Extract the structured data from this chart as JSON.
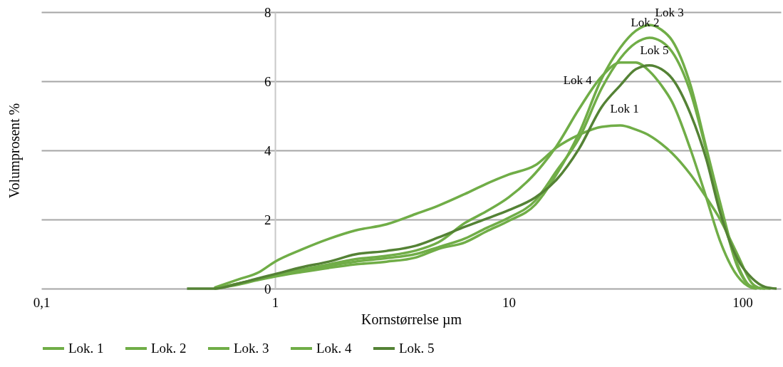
{
  "chart_data": {
    "type": "line",
    "xlabel": "Kornstørrelse µm",
    "ylabel": "Volumprosent %",
    "series": [
      {
        "name": "Lok. 1",
        "color": "#70ad47",
        "x": [
          0.55,
          0.7,
          0.85,
          1,
          1.3,
          1.7,
          2.2,
          3,
          4,
          5,
          6.5,
          8,
          10,
          13,
          16,
          20,
          25,
          30,
          35,
          40,
          45,
          50,
          60,
          70,
          80,
          95,
          110,
          120
        ],
        "values": [
          0.03,
          0.27,
          0.47,
          0.78,
          1.13,
          1.44,
          1.68,
          1.86,
          2.16,
          2.4,
          2.74,
          3.03,
          3.3,
          3.57,
          4.08,
          4.45,
          4.68,
          4.72,
          4.6,
          4.43,
          4.19,
          3.92,
          3.3,
          2.64,
          2.02,
          1.0,
          0.15,
          0
        ]
      },
      {
        "name": "Lok. 2",
        "color": "#70ad47",
        "x": [
          0.55,
          0.7,
          0.85,
          1,
          1.3,
          1.7,
          2.2,
          3,
          4,
          5,
          6.5,
          8,
          10,
          13,
          16,
          20,
          25,
          30,
          35,
          40,
          45,
          50,
          60,
          70,
          80,
          95,
          110,
          125
        ],
        "values": [
          0,
          0.15,
          0.28,
          0.38,
          0.52,
          0.66,
          0.78,
          0.88,
          1.0,
          1.2,
          1.45,
          1.75,
          2.05,
          2.55,
          3.4,
          4.35,
          5.8,
          6.66,
          7.11,
          7.26,
          7.15,
          6.85,
          5.67,
          4.0,
          2.45,
          0.65,
          0.05,
          0
        ]
      },
      {
        "name": "Lok. 3",
        "color": "#70ad47",
        "x": [
          0.55,
          0.7,
          0.85,
          1,
          1.3,
          1.7,
          2.2,
          3,
          4,
          5,
          6.5,
          8,
          10,
          13,
          16,
          20,
          25,
          30,
          35,
          40,
          45,
          50,
          60,
          70,
          80,
          95,
          110,
          132
        ],
        "values": [
          0,
          0.12,
          0.25,
          0.35,
          0.48,
          0.6,
          0.7,
          0.78,
          0.9,
          1.15,
          1.34,
          1.65,
          1.96,
          2.43,
          3.3,
          4.5,
          6.08,
          6.97,
          7.46,
          7.63,
          7.49,
          7.18,
          5.88,
          4.08,
          2.52,
          0.72,
          0.05,
          0
        ]
      },
      {
        "name": "Lok. 4",
        "color": "#70ad47",
        "x": [
          0.55,
          0.7,
          0.85,
          1,
          1.3,
          1.7,
          2.2,
          3,
          4,
          5,
          6.5,
          8,
          10,
          13,
          16,
          20,
          25,
          30,
          35,
          40,
          45,
          50,
          60,
          70,
          80,
          95,
          110,
          115
        ],
        "values": [
          0,
          0.15,
          0.28,
          0.4,
          0.55,
          0.7,
          0.85,
          0.95,
          1.1,
          1.34,
          1.9,
          2.23,
          2.64,
          3.34,
          4.12,
          5.2,
          6.14,
          6.54,
          6.54,
          6.29,
          5.88,
          5.4,
          4.02,
          2.64,
          1.4,
          0.37,
          0.02,
          0
        ]
      },
      {
        "name": "Lok. 5",
        "color": "#548235",
        "x": [
          0.42,
          0.55,
          0.7,
          0.85,
          1,
          1.3,
          1.7,
          2.2,
          3,
          4,
          5,
          6.5,
          8,
          10,
          13,
          16,
          20,
          25,
          30,
          35,
          40,
          45,
          50,
          60,
          70,
          80,
          95,
          110,
          125,
          140
        ],
        "values": [
          0,
          0,
          0.15,
          0.3,
          0.42,
          0.62,
          0.78,
          0.99,
          1.09,
          1.24,
          1.48,
          1.79,
          2.02,
          2.27,
          2.64,
          3.15,
          4.05,
          5.26,
          5.88,
          6.35,
          6.46,
          6.35,
          6.08,
          5.05,
          3.75,
          2.23,
          0.87,
          0.3,
          0.05,
          0
        ]
      }
    ],
    "annotations": [
      {
        "text": "Lok 3",
        "x": 40,
        "y": 7.63
      },
      {
        "text": "Lok 2",
        "x": 40,
        "y": 7.26
      },
      {
        "text": "Lok 5",
        "x": 42,
        "y": 6.46
      },
      {
        "text": "Lok 4",
        "x": 24,
        "y": 5.8
      },
      {
        "text": "Lok 1",
        "x": 30,
        "y": 4.72
      }
    ],
    "log": "x",
    "xlim": [
      0.1,
      146
    ],
    "xticks": [
      {
        "value": 0.1,
        "label": "0,1"
      },
      1,
      10,
      100
    ],
    "ylim": [
      0,
      8
    ],
    "yticks": [
      0,
      2,
      4,
      6,
      8
    ],
    "grid": "y",
    "legend": "bottom",
    "line_style": "solid",
    "marker": "none"
  }
}
